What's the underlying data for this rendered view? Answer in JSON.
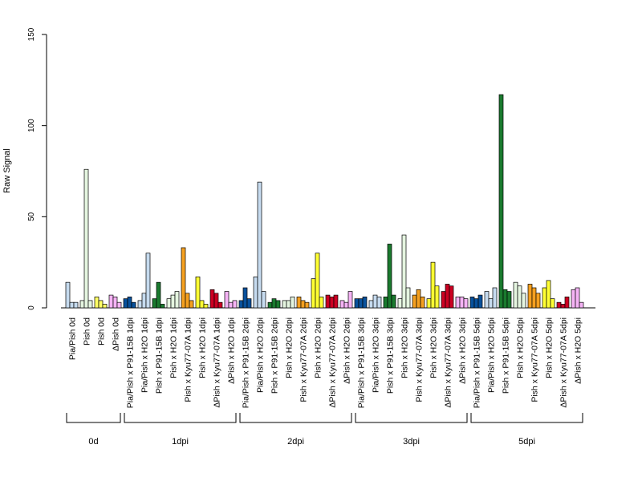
{
  "chart_data": {
    "type": "bar",
    "title": "",
    "xlabel": "",
    "ylabel": "Raw Signal",
    "ylim": [
      0,
      150
    ],
    "yticks": [
      0,
      50,
      100,
      150
    ],
    "grid": false,
    "categories": [
      "Pia/Pish 0d",
      "Pish 0d",
      "Pish 0d",
      "ΔPish 0d",
      "Pia/Pish x P91-15B 1dpi",
      "Pia/Pish x H2O 1dpi",
      "Pish x P91-15B 1dpi",
      "Pish x H2O 1dpi",
      "Pish x Kyu77-07A 1dpi",
      "Pish x H2O 1dpi",
      "ΔPish x Kyu77-07A 1dpi",
      "ΔPish x H2O 1dpi",
      "Pia/Pish x P91-15B 2dpi",
      "Pia/Pish x H2O 2dpi",
      "Pish x P91-15B 2dpi",
      "Pish x H2O 2dpi",
      "Pish x Kyu77-07A 2dpi",
      "Pish x H2O 2dpi",
      "ΔPish x Kyu77-07A 2dpi",
      "ΔPish x H2O 2dpi",
      "Pia/Pish x P91-15B 3dpi",
      "Pia/Pish x H2O 3dpi",
      "Pish x P91-15B 3dpi",
      "Pish x H2O 3dpi",
      "Pish x Kyu77-07A 3dpi",
      "Pish x H2O 3dpi",
      "ΔPish x Kyu77-07A 3dpi",
      "ΔPish x H2O 3dpi",
      "Pia/Pish x P91-15B 5dpi",
      "Pia/Pish x H2O 5dpi",
      "Pish x P91-15B 5dpi",
      "Pish x H2O 5dpi",
      "Pish x Kyu77-07A 5dpi",
      "Pish x H2O 5dpi",
      "ΔPish x Kyu77-07A 5dpi",
      "ΔPish x H2O 5dpi"
    ],
    "colors": [
      "#c6dbef",
      "#e5f5e0",
      "#ffff66",
      "#f5b3f5",
      "#08519c",
      "#c6dbef",
      "#1a7a2e",
      "#e5f5e0",
      "#f5a020",
      "#ffff33",
      "#cc0022",
      "#f5b3f5",
      "#08519c",
      "#c6dbef",
      "#1a7a2e",
      "#e5f5e0",
      "#f5a020",
      "#ffff33",
      "#cc0022",
      "#f5b3f5",
      "#08519c",
      "#c6dbef",
      "#1a7a2e",
      "#e5f5e0",
      "#f5a020",
      "#ffff33",
      "#cc0022",
      "#f5b3f5",
      "#08519c",
      "#c6dbef",
      "#1a7a2e",
      "#e5f5e0",
      "#f5a020",
      "#ffff33",
      "#cc0022",
      "#f5b3f5"
    ],
    "values": [
      [
        14,
        3,
        3
      ],
      [
        4,
        76,
        4
      ],
      [
        6,
        4,
        2
      ],
      [
        7,
        6,
        3
      ],
      [
        5,
        6,
        3
      ],
      [
        4,
        8,
        30
      ],
      [
        5,
        14,
        2
      ],
      [
        5,
        7,
        9
      ],
      [
        33,
        8,
        4
      ],
      [
        17,
        4,
        2
      ],
      [
        10,
        8,
        3
      ],
      [
        9,
        3,
        4
      ],
      [
        4,
        11,
        5
      ],
      [
        17,
        69,
        9
      ],
      [
        3,
        5,
        4
      ],
      [
        4,
        4,
        6
      ],
      [
        6,
        4,
        3
      ],
      [
        16,
        30,
        6
      ],
      [
        7,
        6,
        7
      ],
      [
        4,
        3,
        9
      ],
      [
        5,
        5,
        6
      ],
      [
        4,
        7,
        6
      ],
      [
        6,
        35,
        7
      ],
      [
        5,
        40,
        11
      ],
      [
        7,
        10,
        6
      ],
      [
        5,
        25,
        12
      ],
      [
        9,
        13,
        12
      ],
      [
        6,
        6,
        5
      ],
      [
        6,
        5,
        7
      ],
      [
        9,
        5,
        11
      ],
      [
        117,
        10,
        9
      ],
      [
        14,
        12,
        8
      ],
      [
        13,
        11,
        8
      ],
      [
        11,
        15,
        5
      ],
      [
        3,
        2,
        6
      ],
      [
        10,
        11,
        3
      ]
    ],
    "groups": [
      {
        "label": "0d",
        "start": 0,
        "end": 3
      },
      {
        "label": "1dpi",
        "start": 4,
        "end": 11
      },
      {
        "label": "2dpi",
        "start": 12,
        "end": 19
      },
      {
        "label": "3dpi",
        "start": 20,
        "end": 27
      },
      {
        "label": "5dpi",
        "start": 28,
        "end": 35
      }
    ]
  }
}
